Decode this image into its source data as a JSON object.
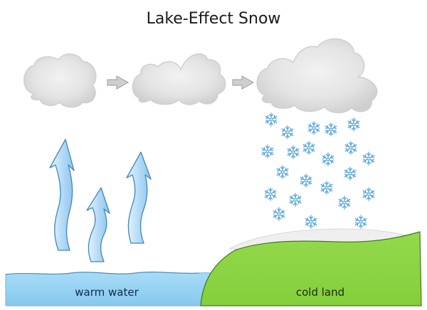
{
  "diagram": {
    "title": "Lake-Effect Snow",
    "labels": {
      "water": "warm water",
      "land": "cold land"
    },
    "colors": {
      "water": "#8fd0f3",
      "land": "#8fd64a",
      "cloud": "#e3e3e3",
      "rising_air": "#b9ddf6",
      "snowflake": "#6fb6e0",
      "process_arrow": "#b5b5b5"
    },
    "icons": [
      "cloud-icon",
      "arrow-right-icon",
      "rising-air-arrow-icon",
      "snowflake-icon"
    ]
  }
}
